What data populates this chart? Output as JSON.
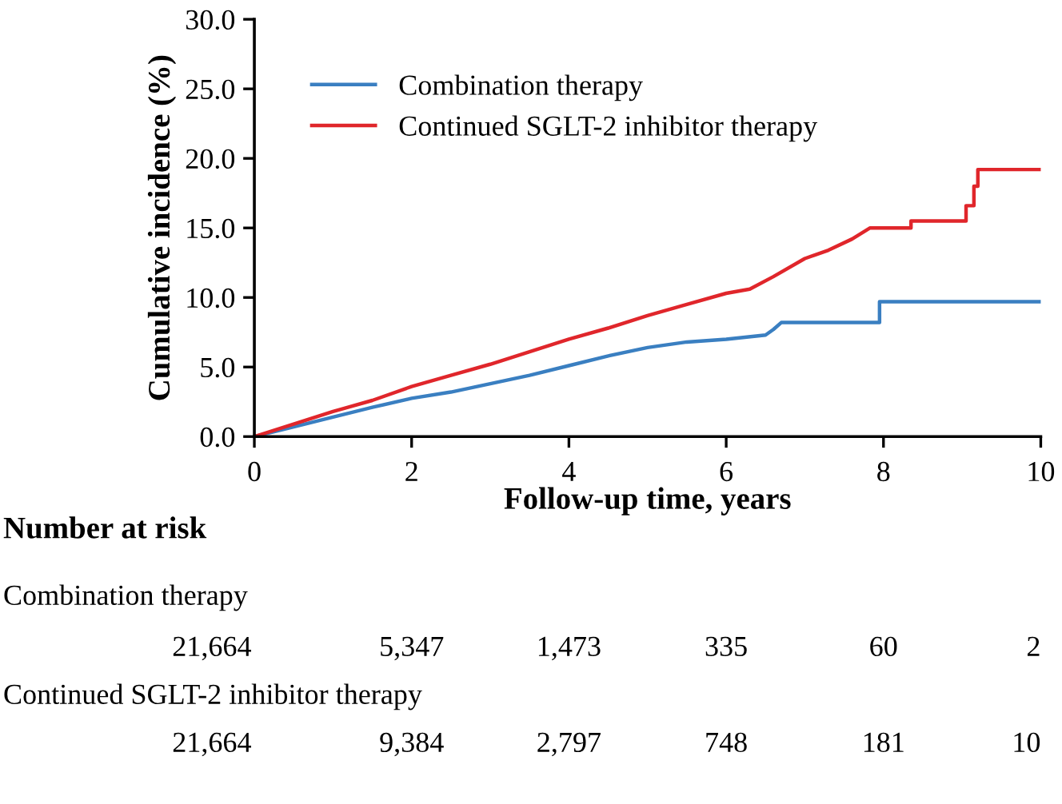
{
  "chart_data": {
    "type": "line",
    "xlabel": "Follow-up time, years",
    "ylabel": "Cumulative incidence (%)",
    "series": [
      {
        "name": "Combination therapy",
        "color": "#3a7fc1",
        "x": [
          0,
          0.5,
          1,
          1.5,
          2,
          2.5,
          3,
          3.5,
          4,
          4.5,
          5,
          5.5,
          6,
          6.5,
          6.6,
          6.7,
          7.95,
          7.95,
          10
        ],
        "values": [
          0,
          0.7,
          1.4,
          2.1,
          2.75,
          3.2,
          3.8,
          4.4,
          5.1,
          5.8,
          6.4,
          6.8,
          7.0,
          7.3,
          7.7,
          8.2,
          8.2,
          9.7,
          9.7
        ]
      },
      {
        "name": "Continued SGLT-2 inhibitor therapy",
        "color": "#e0262b",
        "x": [
          0,
          0.5,
          1,
          1.5,
          2,
          2.5,
          3,
          3.5,
          4,
          4.5,
          5,
          5.5,
          6,
          6.3,
          6.6,
          7.0,
          7.3,
          7.6,
          7.83,
          8.35,
          8.35,
          9.05,
          9.05,
          9.15,
          9.15,
          9.2,
          9.2,
          10
        ],
        "values": [
          0,
          0.9,
          1.8,
          2.6,
          3.6,
          4.4,
          5.2,
          6.1,
          7.0,
          7.8,
          8.7,
          9.5,
          10.3,
          10.6,
          11.5,
          12.8,
          13.4,
          14.2,
          15.0,
          15.0,
          15.5,
          15.5,
          16.6,
          16.6,
          18.0,
          18.0,
          19.2,
          19.2
        ]
      }
    ],
    "xlim": [
      0,
      10
    ],
    "xticks": [
      0,
      2,
      4,
      6,
      8,
      10
    ],
    "ylim": [
      0,
      30
    ],
    "yticks": [
      {
        "value": 0,
        "label": "0.0"
      },
      {
        "value": 5,
        "label": "5.0"
      },
      {
        "value": 10,
        "label": "10.0"
      },
      {
        "value": 15,
        "label": "15.0"
      },
      {
        "value": 20,
        "label": "20.0"
      },
      {
        "value": 25,
        "label": "25.0"
      },
      {
        "value": 30,
        "label": "30.0"
      }
    ],
    "legend": "top left",
    "grid": false,
    "marker": "none",
    "line_style": "solid",
    "annotations": [
      "Number at risk",
      "Combination therapy",
      "21,664",
      "5,347",
      "1,473",
      "335",
      "60",
      "2",
      "Continued SGLT-2 inhibitor therapy",
      "21,664",
      "9,384",
      "2,797",
      "748",
      "181",
      "10"
    ]
  }
}
